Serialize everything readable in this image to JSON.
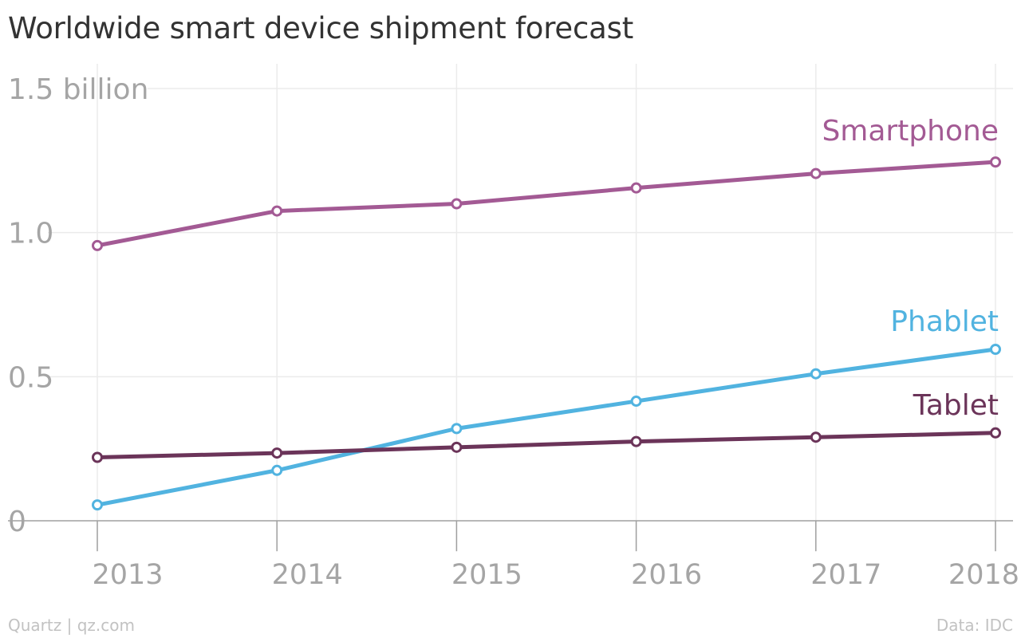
{
  "chart_data": {
    "type": "line",
    "title": "Worldwide smart device shipment forecast",
    "x": [
      "2013",
      "2014",
      "2015",
      "2016",
      "2017",
      "2018"
    ],
    "ylim": [
      0,
      1.5
    ],
    "yticks": [
      {
        "value": 0,
        "label": "0"
      },
      {
        "value": 0.5,
        "label": "0.5"
      },
      {
        "value": 1.0,
        "label": "1.0"
      },
      {
        "value": 1.5,
        "label": "1.5 billion"
      }
    ],
    "grid": true,
    "legend": "inline labels at right end of each line",
    "series": [
      {
        "name": "Smartphone",
        "color": "#a35a94",
        "values": [
          0.955,
          1.075,
          1.1,
          1.155,
          1.205,
          1.245
        ]
      },
      {
        "name": "Phablet",
        "color": "#51b3e0",
        "values": [
          0.055,
          0.175,
          0.32,
          0.415,
          0.51,
          0.595
        ]
      },
      {
        "name": "Tablet",
        "color": "#6b3459",
        "values": [
          0.22,
          0.235,
          0.255,
          0.275,
          0.29,
          0.305
        ]
      }
    ]
  },
  "footer": {
    "source": "Quartz | qz.com",
    "credit": "Data: IDC"
  }
}
